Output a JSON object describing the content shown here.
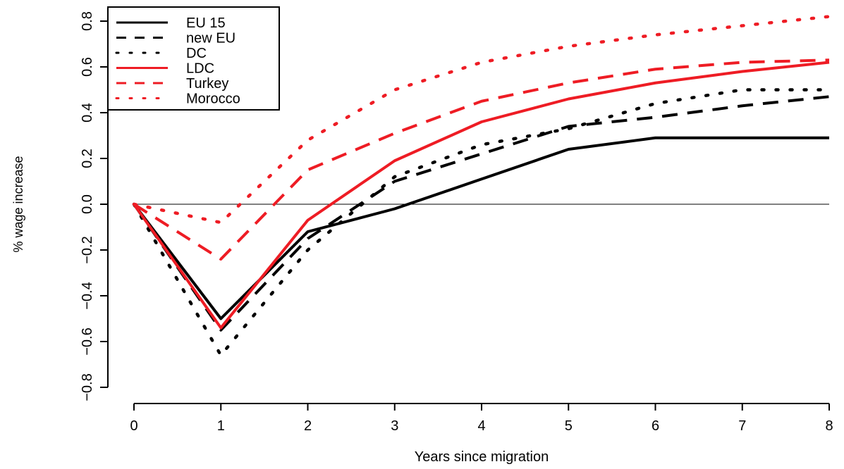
{
  "chart_data": {
    "type": "line",
    "xlabel": "Years since migration",
    "ylabel": "% wage increase",
    "x": [
      0,
      1,
      2,
      3,
      4,
      5,
      6,
      7,
      8
    ],
    "x_ticks": [
      "0",
      "1",
      "2",
      "3",
      "4",
      "5",
      "6",
      "7",
      "8"
    ],
    "y_ticks": [
      "−0.8",
      "−0.6",
      "−0.4",
      "−0.2",
      "0.0",
      "0.2",
      "0.4",
      "0.6",
      "0.8"
    ],
    "y_tick_values": [
      -0.8,
      -0.6,
      -0.4,
      -0.2,
      0.0,
      0.2,
      0.4,
      0.6,
      0.8
    ],
    "xlim": [
      0,
      8
    ],
    "ylim": [
      -0.8,
      0.8
    ],
    "grid": false,
    "reference_line_y": 0,
    "legend_position": "top-left",
    "series": [
      {
        "name": "EU 15",
        "color": "#000000",
        "style": "solid",
        "values": [
          0,
          -0.5,
          -0.12,
          -0.02,
          0.11,
          0.24,
          0.29,
          0.29,
          0.29
        ]
      },
      {
        "name": "new EU",
        "color": "#000000",
        "style": "dashed",
        "values": [
          0,
          -0.55,
          -0.15,
          0.1,
          0.22,
          0.34,
          0.38,
          0.43,
          0.47
        ]
      },
      {
        "name": "DC",
        "color": "#000000",
        "style": "dotted",
        "values": [
          0,
          -0.66,
          -0.2,
          0.12,
          0.26,
          0.33,
          0.44,
          0.5,
          0.5
        ]
      },
      {
        "name": "LDC",
        "color": "#ee1c24",
        "style": "solid",
        "values": [
          0,
          -0.54,
          -0.07,
          0.19,
          0.36,
          0.46,
          0.53,
          0.58,
          0.62
        ]
      },
      {
        "name": "Turkey",
        "color": "#ee1c24",
        "style": "dashed",
        "values": [
          0,
          -0.24,
          0.15,
          0.31,
          0.45,
          0.53,
          0.59,
          0.62,
          0.63
        ]
      },
      {
        "name": "Morocco",
        "color": "#ee1c24",
        "style": "dotted",
        "values": [
          0,
          -0.08,
          0.28,
          0.5,
          0.62,
          0.69,
          0.74,
          0.78,
          0.82
        ]
      }
    ]
  }
}
